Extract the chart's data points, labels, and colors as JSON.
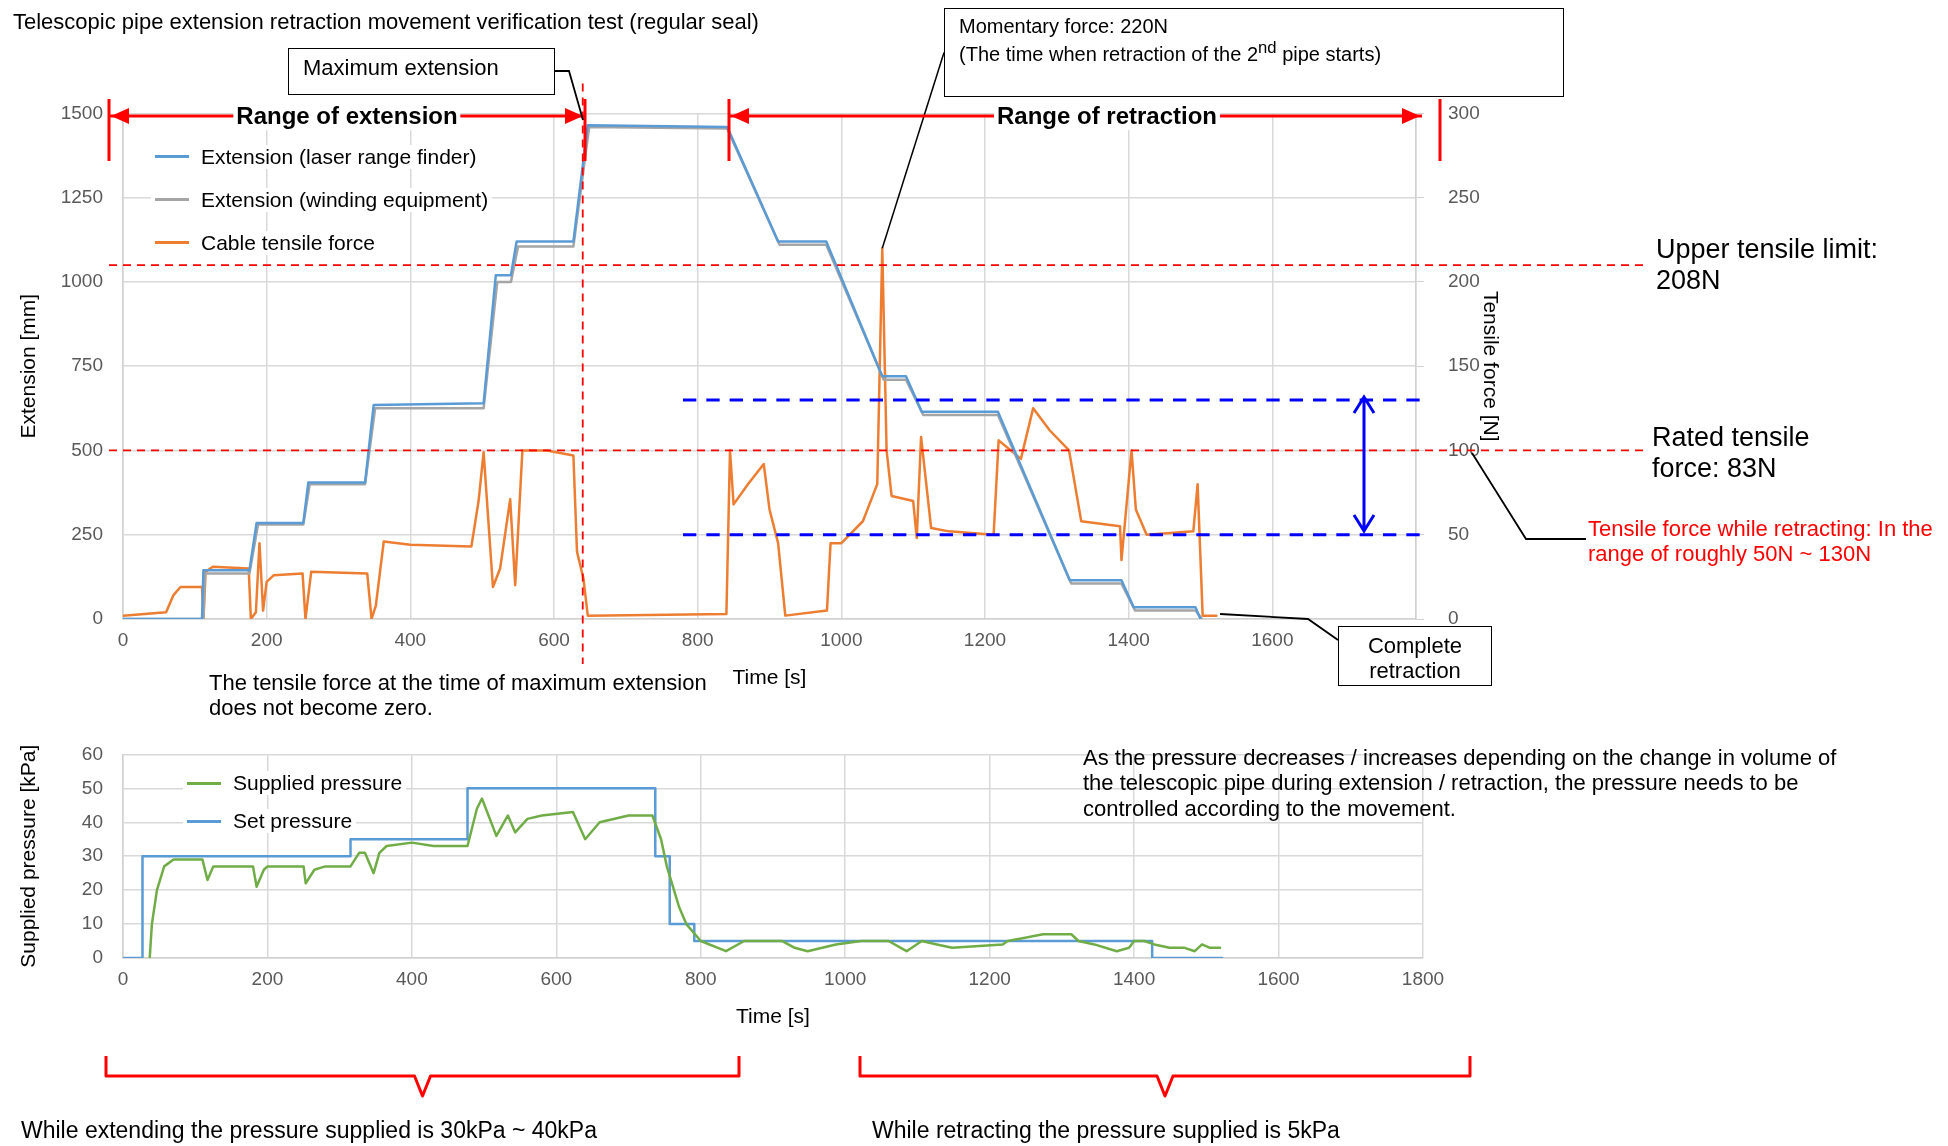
{
  "chart_data": [
    {
      "type": "line",
      "title": "Telescopic pipe extension retraction movement verification test (regular seal)",
      "xlabel": "Time [s]",
      "ylabel": "Extension [mm]",
      "y2label": "Tensile force [N]",
      "xlim": [
        0,
        1800
      ],
      "xticks": [
        0,
        200,
        400,
        600,
        800,
        1000,
        1200,
        1400,
        1600,
        {
          "value": 1800,
          "label": null
        }
      ],
      "ylim": [
        0,
        1500
      ],
      "yticks": [
        0,
        250,
        500,
        750,
        1000,
        1250,
        1500
      ],
      "y2lim": [
        0,
        300
      ],
      "y2ticks": [
        0,
        50,
        100,
        150,
        200,
        250,
        300
      ],
      "grid": true,
      "legend": "top left",
      "series": [
        {
          "name": "Extension (laser range finder)",
          "color": "#5b9bd5",
          "x": [
            0,
            110,
            112,
            176,
            186,
            251,
            258,
            337,
            349,
            502,
            519,
            540,
            548,
            627,
            647,
            841,
            912,
            979,
            1057,
            1090,
            1112,
            1218,
            1318,
            1390,
            1407,
            1493,
            1500
          ],
          "values": [
            0,
            0,
            145,
            145,
            285,
            285,
            405,
            405,
            635,
            640,
            1020,
            1020,
            1120,
            1120,
            1465,
            1460,
            1120,
            1120,
            720,
            720,
            615,
            615,
            115,
            115,
            35,
            35,
            0
          ]
        },
        {
          "name": "Extension (winding equipment)",
          "color": "#a5a5a5",
          "x": [
            0,
            112,
            114,
            176,
            188,
            251,
            260,
            337,
            351,
            502,
            521,
            540,
            550,
            627,
            649,
            841,
            914,
            979,
            1059,
            1090,
            1114,
            1218,
            1320,
            1390,
            1409,
            1493,
            1502
          ],
          "values": [
            0,
            0,
            135,
            135,
            280,
            280,
            400,
            400,
            625,
            625,
            1000,
            1000,
            1105,
            1105,
            1460,
            1455,
            1110,
            1110,
            710,
            710,
            605,
            605,
            105,
            105,
            25,
            25,
            0
          ]
        },
        {
          "name": "Cable tensile force",
          "color": "#ed7d31",
          "axis": "y2",
          "x": [
            0,
            60,
            70,
            80,
            110,
            112,
            115,
            125,
            175,
            178,
            185,
            190,
            195,
            200,
            210,
            250,
            254,
            262,
            340,
            346,
            352,
            363,
            400,
            485,
            495,
            502,
            515,
            525,
            539,
            546,
            556,
            590,
            627,
            632,
            641,
            647,
            840,
            845,
            850,
            870,
            892,
            900,
            912,
            922,
            980,
            985,
            1000,
            1030,
            1050,
            1057,
            1063,
            1070,
            1100,
            1105,
            1111,
            1125,
            1150,
            1212,
            1219,
            1250,
            1267,
            1290,
            1317,
            1334,
            1388,
            1390,
            1404,
            1410,
            1425,
            1490,
            1496,
            1503,
            1522
          ],
          "values": [
            2,
            4,
            14,
            19,
            19,
            0,
            28,
            31,
            30,
            0,
            4,
            45,
            5,
            22,
            26,
            27,
            0,
            28,
            27,
            0,
            8,
            46,
            44,
            43,
            70,
            99,
            19,
            30,
            71,
            20,
            100,
            100,
            97,
            40,
            24,
            2,
            3,
            100,
            68,
            80,
            92,
            65,
            45,
            2,
            5,
            45,
            45,
            58,
            80,
            220,
            100,
            73,
            70,
            48,
            108,
            54,
            52,
            50,
            106,
            95,
            125,
            112,
            100,
            58,
            55,
            35,
            100,
            65,
            50,
            52,
            80,
            2,
            2
          ]
        }
      ],
      "ref_lines": [
        {
          "axis": "x",
          "value": 640,
          "color": "#ff0000",
          "line_style": "dashed"
        },
        {
          "axis": "y2",
          "value": 210,
          "color": "#ff0000",
          "line_style": "dashed"
        },
        {
          "axis": "y2",
          "value": 100,
          "color": "#ff0000",
          "line_style": "dashed"
        },
        {
          "axis": "y2",
          "value": 130,
          "color": "#0000ff",
          "line_style": "dashed"
        },
        {
          "axis": "y2",
          "value": 50,
          "color": "#0000ff",
          "line_style": "dashed"
        }
      ],
      "annotations": [
        "Maximum extension",
        {
          "text": "Momentary force: 220N\n(The time when retraction of the 2$^{nd}$ pipe starts)",
          "x": 1057,
          "y": 1100
        },
        "The tensile force at the time of maximum extension does not become zero.",
        "Complete retraction",
        "Range of extension",
        "Range of retraction",
        "Upper tensile limit: 208N",
        "Rated tensile force: 83N",
        "Tensile force while retracting: In the range of roughly 50N ~ 130N"
      ]
    },
    {
      "type": "line",
      "xlabel": "Time [s]",
      "ylabel": "Supplied pressure [kPa]",
      "xlim": [
        0,
        1800
      ],
      "xticks": [
        0,
        200,
        400,
        600,
        800,
        1000,
        1200,
        1400,
        1600,
        1800
      ],
      "ylim": [
        0,
        60
      ],
      "yticks": [
        0,
        10,
        20,
        30,
        40,
        50,
        60
      ],
      "grid": true,
      "legend": "top left",
      "series": [
        {
          "name": "Supplied pressure",
          "color": "#70ad47",
          "x": [
            37,
            40,
            47,
            57,
            70,
            110,
            117,
            125,
            180,
            185,
            195,
            200,
            250,
            253,
            265,
            280,
            315,
            327,
            335,
            347,
            355,
            365,
            400,
            430,
            477,
            490,
            497,
            517,
            533,
            543,
            560,
            580,
            623,
            640,
            660,
            700,
            733,
            745,
            753,
            770,
            780,
            800,
            835,
            860,
            913,
            930,
            948,
            987,
            1022,
            1060,
            1085,
            1106,
            1127,
            1148,
            1218,
            1225,
            1274,
            1313,
            1323,
            1345,
            1376,
            1393,
            1400,
            1414,
            1428,
            1449,
            1470,
            1484,
            1494,
            1505,
            1519
          ],
          "values": [
            0,
            10,
            20,
            27,
            29,
            29,
            23,
            27,
            27,
            21,
            26,
            27,
            27,
            22,
            26,
            27,
            27,
            31,
            31,
            25,
            31,
            33,
            34,
            33,
            33,
            44,
            47,
            36,
            42,
            37,
            41,
            42,
            43,
            35,
            40,
            42,
            42,
            35,
            27,
            15,
            10,
            5,
            2,
            5,
            5,
            3,
            2,
            4,
            5,
            5,
            2,
            5,
            4,
            3,
            4,
            5,
            7,
            7,
            5,
            4,
            2,
            3,
            5,
            5,
            4,
            3,
            3,
            2,
            4,
            3,
            3
          ]
        },
        {
          "name": "Set pressure",
          "type": "step",
          "color": "#5b9bd5",
          "x": [
            0,
            27,
            315,
            477,
            737,
            757,
            791,
            1425,
            1522
          ],
          "values": [
            0,
            30,
            35,
            50,
            30,
            10,
            5,
            0,
            0
          ]
        }
      ],
      "annotations": [
        "As the pressure decreases / increases depending on the change in volume of the telescopic pipe during extension / retraction, the pressure needs to be controlled according to the movement.",
        "While extending the pressure supplied is 30kPa ~ 40kPa",
        "While retracting the pressure supplied is 5kPa"
      ]
    }
  ]
}
